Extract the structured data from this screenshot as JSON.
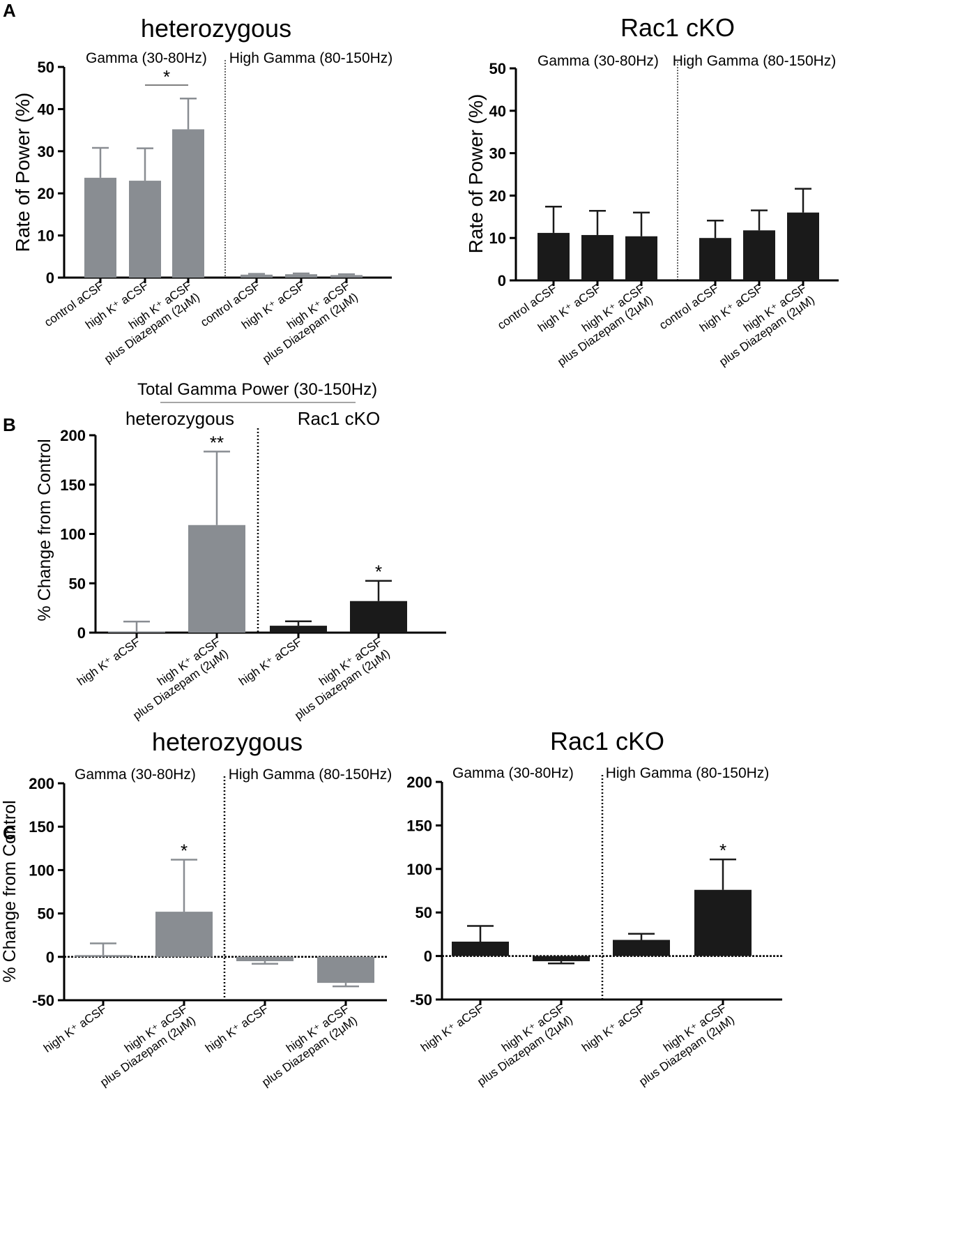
{
  "panels": [
    {
      "id": "A",
      "label": "A"
    },
    {
      "id": "B",
      "label": "B"
    },
    {
      "id": "C",
      "label": "C"
    }
  ],
  "colors": {
    "heterozygous": "#898d92",
    "rac1": "#1a1a1a",
    "axis": "#000000"
  },
  "chart_data": [
    {
      "id": "A-het",
      "type": "bar",
      "panel": "A",
      "title": "heterozygous",
      "ylabel": "Rate of Power (%)",
      "xlabel": "",
      "ylim": [
        0,
        50
      ],
      "yticks": [
        0,
        10,
        20,
        30,
        40,
        50
      ],
      "groups": [
        "Gamma (30-80Hz)",
        "High Gamma (80-150Hz)"
      ],
      "categories": [
        "control aCSF",
        "high K⁺ aCSF",
        "high K⁺ aCSF plus Diazepam (2μM)",
        "control aCSF",
        "high K⁺ aCSF",
        "high K⁺ aCSF plus Diazepam (2μM)"
      ],
      "values": [
        23.7,
        23.0,
        35.2,
        0.7,
        0.8,
        0.6
      ],
      "errors": [
        7.1,
        7.7,
        7.3,
        0.2,
        0.2,
        0.2
      ],
      "color": "#898d92",
      "significance": [
        {
          "from": 1,
          "to": 2,
          "label": "*"
        }
      ]
    },
    {
      "id": "A-rac",
      "type": "bar",
      "panel": "A",
      "title": "Rac1 cKO",
      "ylabel": "Rate of Power (%)",
      "xlabel": "",
      "ylim": [
        0,
        50
      ],
      "yticks": [
        0,
        10,
        20,
        30,
        40,
        50
      ],
      "groups": [
        "Gamma (30-80Hz)",
        "High Gamma (80-150Hz)"
      ],
      "categories": [
        "control aCSF",
        "high K⁺ aCSF",
        "high K⁺ aCSF plus Diazepam (2μM)",
        "control aCSF",
        "high K⁺ aCSF",
        "high K⁺ aCSF plus Diazepam (2μM)"
      ],
      "values": [
        11.2,
        10.7,
        10.4,
        10.0,
        11.8,
        16.0
      ],
      "errors": [
        6.2,
        5.7,
        5.6,
        4.1,
        4.7,
        5.6
      ],
      "color": "#1a1a1a"
    },
    {
      "id": "B-total",
      "type": "bar",
      "panel": "B",
      "title": "Total Gamma Power (30-150Hz)",
      "ylabel": "% Change from Control",
      "xlabel": "",
      "ylim": [
        0,
        200
      ],
      "yticks": [
        0,
        50,
        100,
        150,
        200
      ],
      "groups": [
        "heterozygous",
        "Rac1 cKO"
      ],
      "categories": [
        "high K⁺ aCSF",
        "high K⁺ aCSF plus Diazepam (2μM)",
        "high K⁺ aCSF",
        "high K⁺ aCSF plus Diazepam (2μM)"
      ],
      "values": [
        1.2,
        109.0,
        7.0,
        32.0
      ],
      "errors": [
        10.0,
        74.5,
        4.5,
        20.5
      ],
      "colors": [
        "#898d92",
        "#898d92",
        "#1a1a1a",
        "#1a1a1a"
      ],
      "stars": [
        "",
        "**",
        "",
        "*"
      ]
    },
    {
      "id": "C-het",
      "type": "bar",
      "panel": "C",
      "title": "heterozygous",
      "ylabel": "% Change from Control",
      "xlabel": "",
      "ylim": [
        -50,
        200
      ],
      "yticks": [
        -50,
        0,
        50,
        100,
        150,
        200
      ],
      "groups": [
        "Gamma (30-80Hz)",
        "High Gamma (80-150Hz)"
      ],
      "categories": [
        "high K⁺ aCSF",
        "high K⁺ aCSF plus Diazepam (2μM)",
        "high K⁺ aCSF",
        "high K⁺ aCSF plus Diazepam (2μM)"
      ],
      "values": [
        2.0,
        52.0,
        -5.0,
        -30.0
      ],
      "errors": [
        13.5,
        60.0,
        3.0,
        4.0
      ],
      "color": "#898d92",
      "stars": [
        "",
        "*",
        "",
        ""
      ]
    },
    {
      "id": "C-rac",
      "type": "bar",
      "panel": "C",
      "title": "Rac1 cKO",
      "ylabel": "",
      "xlabel": "",
      "ylim": [
        -50,
        200
      ],
      "yticks": [
        -50,
        0,
        50,
        100,
        150,
        200
      ],
      "groups": [
        "Gamma (30-80Hz)",
        "High Gamma (80-150Hz)"
      ],
      "categories": [
        "high K⁺ aCSF",
        "high K⁺ aCSF plus Diazepam (2μM)",
        "high K⁺ aCSF",
        "high K⁺ aCSF plus Diazepam (2μM)"
      ],
      "values": [
        16.5,
        -6.0,
        18.5,
        76.0
      ],
      "errors": [
        18.0,
        2.5,
        7.0,
        35.0
      ],
      "color": "#1a1a1a",
      "stars": [
        "",
        "",
        "",
        "*"
      ]
    }
  ]
}
